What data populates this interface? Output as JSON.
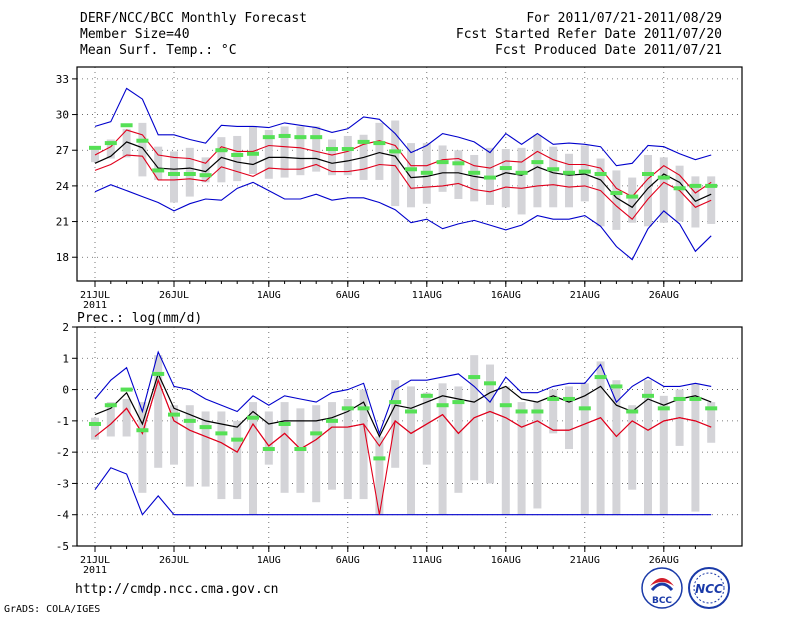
{
  "header": {
    "title": "DERF/NCC/BCC Monthly Forecast",
    "member_size": "Member Size=40",
    "variable": "Mean Surf. Temp.: °C",
    "period": "For 2011/07/21-2011/08/29",
    "started": "Fcst Started Refer Date 2011/07/20",
    "produced": "Fcst Produced Date 2011/07/21"
  },
  "footer": {
    "url": "http://cmdp.ncc.cma.gov.cn",
    "grads": "GrADS: COLA/IGES",
    "logo1_text": "BCC",
    "logo2_text": "NCC"
  },
  "colors": {
    "mean": "#000000",
    "spread": "#e0001c",
    "extreme": "#0000cc",
    "obs": "#55e055",
    "box": "#d4d4d8"
  },
  "chart_data": [
    {
      "type": "line",
      "title": "Mean Surf. Temp.: °C",
      "x_tick_labels": [
        "21JUL",
        "26JUL",
        "1AUG",
        "6AUG",
        "11AUG",
        "16AUG",
        "21AUG",
        "26AUG"
      ],
      "x_tick_day_index": [
        0,
        5,
        11,
        16,
        21,
        26,
        31,
        36
      ],
      "year_label": "2011",
      "ylim": [
        16,
        34
      ],
      "yticks": [
        18,
        21,
        24,
        27,
        30,
        33
      ],
      "grid": true,
      "series": [
        {
          "name": "max",
          "values": [
            23.5,
            24.1,
            23.6,
            23.1,
            22.6,
            21.9,
            22.5,
            22.9,
            22.8,
            23.8,
            24.3,
            23.6,
            22.9,
            22.9,
            23.3,
            22.8,
            23.0,
            23.0,
            22.6,
            22.0,
            20.9,
            21.2,
            20.4,
            20.8,
            21.1,
            20.7,
            20.3,
            20.7,
            21.5,
            21.2,
            21.2,
            21.5,
            20.6,
            18.9,
            17.8,
            20.4,
            21.9,
            20.8,
            18.5,
            19.8
          ]
        },
        {
          "name": "p10",
          "values": [
            25.3,
            25.8,
            26.6,
            26.5,
            24.5,
            24.5,
            24.6,
            24.4,
            25.6,
            25.2,
            24.8,
            25.5,
            25.4,
            25.4,
            25.8,
            25.2,
            25.2,
            25.4,
            25.8,
            25.7,
            23.8,
            23.9,
            24.0,
            24.2,
            23.7,
            23.5,
            23.9,
            23.8,
            24.0,
            24.1,
            23.9,
            24.0,
            23.6,
            22.3,
            21.2,
            22.9,
            24.3,
            23.6,
            22.2,
            22.8
          ]
        },
        {
          "name": "mean",
          "values": [
            25.9,
            26.5,
            27.7,
            27.2,
            25.5,
            25.4,
            25.5,
            25.2,
            26.4,
            26.0,
            25.8,
            26.4,
            26.4,
            26.3,
            26.3,
            25.9,
            26.1,
            26.4,
            26.8,
            26.5,
            24.7,
            24.8,
            25.1,
            25.1,
            24.8,
            24.6,
            25.1,
            24.9,
            25.6,
            25.1,
            24.9,
            25.0,
            24.5,
            23.0,
            22.2,
            23.8,
            25.0,
            24.3,
            22.7,
            23.3
          ]
        },
        {
          "name": "p90",
          "values": [
            26.6,
            27.3,
            28.7,
            28.3,
            26.6,
            26.4,
            26.3,
            25.9,
            27.3,
            26.9,
            26.9,
            27.4,
            27.3,
            27.2,
            26.9,
            26.6,
            26.9,
            27.5,
            27.8,
            27.4,
            25.7,
            25.7,
            26.2,
            26.3,
            25.7,
            25.5,
            26.1,
            26.0,
            26.9,
            26.2,
            25.8,
            25.8,
            25.5,
            23.8,
            23.1,
            24.6,
            25.7,
            24.9,
            23.4,
            24.3
          ]
        },
        {
          "name": "min",
          "values": [
            29.0,
            29.4,
            32.2,
            31.3,
            28.3,
            28.3,
            27.9,
            27.6,
            29.1,
            29.0,
            29.0,
            28.9,
            29.3,
            29.1,
            28.9,
            28.5,
            28.8,
            29.8,
            29.6,
            28.4,
            26.8,
            27.4,
            28.4,
            28.1,
            27.7,
            26.8,
            28.4,
            27.5,
            28.4,
            27.5,
            27.6,
            27.5,
            27.3,
            25.7,
            25.9,
            27.4,
            27.3,
            26.7,
            26.2,
            26.6
          ]
        },
        {
          "name": "observed",
          "values": [
            27.2,
            27.6,
            29.1,
            27.8,
            25.3,
            25.0,
            25.0,
            24.9,
            27.0,
            26.6,
            26.7,
            28.1,
            28.2,
            28.1,
            28.1,
            27.1,
            27.1,
            27.7,
            27.6,
            26.9,
            25.4,
            25.1,
            26.0,
            25.9,
            25.1,
            24.7,
            25.5,
            25.1,
            26.0,
            25.4,
            25.1,
            25.2,
            25.0,
            23.4,
            23.1,
            25.0,
            24.7,
            23.8,
            24.0,
            24.0
          ]
        }
      ],
      "boxes": {
        "low": [
          26.0,
          26.3,
          26.4,
          24.8,
          24.5,
          22.6,
          23.1,
          24.3,
          24.3,
          24.4,
          25.0,
          24.6,
          24.7,
          24.9,
          25.2,
          24.9,
          24.9,
          24.5,
          24.5,
          22.3,
          22.2,
          22.5,
          23.5,
          22.9,
          22.7,
          22.4,
          22.2,
          21.6,
          22.2,
          22.2,
          22.2,
          22.7,
          20.6,
          20.3,
          20.9,
          20.6,
          20.9,
          21.0,
          20.5,
          20.8
        ],
        "high": [
          27.2,
          27.9,
          28.8,
          29.3,
          27.3,
          26.9,
          27.2,
          26.4,
          28.1,
          28.2,
          29.0,
          28.7,
          29.0,
          29.0,
          29.0,
          27.9,
          28.2,
          28.3,
          29.3,
          29.5,
          27.6,
          27.6,
          27.4,
          27.0,
          26.6,
          27.2,
          27.1,
          27.2,
          28.3,
          27.3,
          26.7,
          27.4,
          26.3,
          25.3,
          24.7,
          26.6,
          26.4,
          25.7,
          24.8,
          24.8
        ]
      }
    },
    {
      "type": "line",
      "title": "Prec.: log(mm/d)",
      "x_tick_labels": [
        "21JUL",
        "26JUL",
        "1AUG",
        "6AUG",
        "11AUG",
        "16AUG",
        "21AUG",
        "26AUG"
      ],
      "x_tick_day_index": [
        0,
        5,
        11,
        16,
        21,
        26,
        31,
        36
      ],
      "year_label": "2011",
      "ylim": [
        -5,
        2
      ],
      "yticks": [
        -5,
        -4,
        -3,
        -2,
        -1,
        0,
        1,
        2
      ],
      "grid": true,
      "series": [
        {
          "name": "max",
          "values": [
            -3.2,
            -2.5,
            -2.7,
            -4.0,
            -3.4,
            -4.0,
            -4.0,
            -4.0,
            -4.0,
            -4.0,
            -4.0,
            -4.0,
            -4.0,
            -4.0,
            -4.0,
            -4.0,
            -4.0,
            -4.0,
            -4.0,
            -4.0,
            -4.0,
            -4.0,
            -4.0,
            -4.0,
            -4.0,
            -4.0,
            -4.0,
            -4.0,
            -4.0,
            -4.0,
            -4.0,
            -4.0,
            -4.0,
            -4.0,
            -4.0,
            -4.0,
            -4.0,
            -4.0,
            -4.0,
            -4.0
          ]
        },
        {
          "name": "p10",
          "values": [
            -1.5,
            -1.1,
            -0.6,
            -1.4,
            0.3,
            -1.0,
            -1.3,
            -1.5,
            -1.7,
            -2.0,
            -1.1,
            -1.8,
            -1.4,
            -1.9,
            -1.6,
            -1.2,
            -1.2,
            -1.1,
            -4.0,
            -1.0,
            -1.4,
            -1.1,
            -0.8,
            -1.4,
            -0.9,
            -0.7,
            -0.9,
            -1.2,
            -1.0,
            -1.3,
            -1.3,
            -1.1,
            -0.9,
            -1.5,
            -1.0,
            -1.3,
            -1.0,
            -0.9,
            -1.0,
            -1.2
          ]
        },
        {
          "name": "mean",
          "values": [
            -0.8,
            -0.6,
            -0.1,
            -1.1,
            0.5,
            -0.6,
            -0.8,
            -1.0,
            -1.1,
            -1.2,
            -0.7,
            -1.1,
            -1.0,
            -1.0,
            -1.0,
            -0.9,
            -0.7,
            -0.4,
            -1.5,
            -0.5,
            -0.6,
            -0.4,
            -0.2,
            -0.3,
            -0.4,
            -0.1,
            0.1,
            -0.3,
            -0.4,
            -0.2,
            -0.4,
            -0.2,
            0.1,
            -0.5,
            -0.7,
            -0.3,
            -0.5,
            -0.3,
            -0.2,
            -0.4
          ]
        },
        {
          "name": "p90",
          "values": [
            -1.5,
            -1.1,
            -0.6,
            -1.4,
            0.3,
            -1.0,
            -1.3,
            -1.5,
            -1.7,
            -2.0,
            -1.1,
            -1.8,
            -1.4,
            -1.9,
            -1.6,
            -1.2,
            -1.2,
            -1.1,
            -1.8,
            -1.0,
            -1.4,
            -1.1,
            -0.8,
            -1.4,
            -0.9,
            -0.7,
            -0.9,
            -1.2,
            -1.0,
            -1.3,
            -1.3,
            -1.1,
            -0.9,
            -1.5,
            -1.0,
            -1.3,
            -1.0,
            -0.9,
            -1.0,
            -1.2
          ]
        },
        {
          "name": "min",
          "values": [
            -0.3,
            0.3,
            0.7,
            -0.7,
            1.2,
            0.1,
            0.0,
            -0.3,
            -0.5,
            -0.7,
            -0.2,
            -0.5,
            -0.2,
            -0.3,
            -0.4,
            -0.1,
            0.0,
            0.2,
            -1.4,
            0.0,
            0.3,
            0.3,
            0.4,
            0.5,
            0.1,
            -0.4,
            0.4,
            -0.1,
            -0.1,
            0.1,
            0.2,
            0.2,
            0.8,
            -0.4,
            0.1,
            0.4,
            0.1,
            0.1,
            0.2,
            0.1
          ]
        },
        {
          "name": "observed",
          "values": [
            -1.1,
            -0.5,
            0.0,
            -1.3,
            0.5,
            -0.8,
            -1.0,
            -1.2,
            -1.4,
            -1.6,
            -0.9,
            -1.9,
            -1.1,
            -1.9,
            -1.4,
            -1.0,
            -0.6,
            -0.6,
            -2.2,
            -0.4,
            -0.7,
            -0.2,
            -0.5,
            -0.4,
            0.4,
            0.2,
            -0.5,
            -0.7,
            -0.7,
            -0.3,
            -0.3,
            -0.6,
            0.4,
            0.1,
            -0.7,
            -0.2,
            -0.6,
            -0.3,
            -0.3,
            -0.6
          ]
        }
      ],
      "boxes": {
        "low": [
          -1.6,
          -1.5,
          -1.5,
          -3.3,
          -2.5,
          -2.4,
          -3.1,
          -3.1,
          -3.5,
          -3.5,
          -4.0,
          -2.4,
          -3.3,
          -3.3,
          -3.6,
          -3.2,
          -3.5,
          -3.5,
          -4.0,
          -2.5,
          -4.0,
          -2.4,
          -4.0,
          -3.3,
          -2.9,
          -3.0,
          -4.0,
          -4.0,
          -3.8,
          -1.4,
          -1.9,
          -4.0,
          -4.0,
          -4.0,
          -3.2,
          -4.0,
          -4.0,
          -1.8,
          -3.9,
          -1.7
        ],
        "high": [
          -0.9,
          -0.4,
          -0.3,
          -0.4,
          1.1,
          -0.5,
          -0.5,
          -0.7,
          -0.7,
          -1.0,
          -0.4,
          -0.7,
          -0.4,
          -0.6,
          -0.5,
          -0.4,
          -0.3,
          0.0,
          -1.5,
          0.3,
          0.1,
          -0.1,
          0.2,
          0.1,
          1.1,
          0.8,
          0.1,
          -0.4,
          -0.4,
          0.0,
          0.1,
          0.2,
          0.9,
          0.3,
          -0.5,
          0.3,
          -0.2,
          0.0,
          0.2,
          -0.4
        ]
      }
    }
  ]
}
